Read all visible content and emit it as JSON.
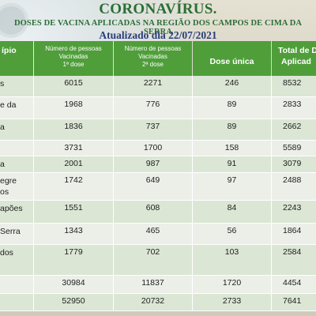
{
  "header": {
    "title": "CORONAVÍRUS.",
    "subtitle": "DOSES DE VACINA APLICADAS NA REGIÃO DOS CAMPOS DE CIMA DA SERRA",
    "date": "Atualizado dia 22/07/2021"
  },
  "columns": {
    "municipio": "ípio",
    "dose1_line1": "Número de pessoas",
    "dose1_line2": "Vacinadas",
    "dose1_line3": "1ª dose",
    "dose2_line1": "Número de pessoas",
    "dose2_line2": "Vacinadas",
    "dose2_line3": "2ª dose",
    "unica": "Dose única",
    "total_line1": "Total de D",
    "total_line2": "Aplicad"
  },
  "rows": [
    {
      "name1": "s",
      "name2": "",
      "d1": "6015",
      "d2": "2271",
      "du": "246",
      "total": "8532"
    },
    {
      "name1": "e da",
      "name2": "",
      "d1": "1968",
      "d2": "776",
      "du": "89",
      "total": "2833"
    },
    {
      "name1": "a",
      "name2": "",
      "d1": "1836",
      "d2": "737",
      "du": "89",
      "total": "2662"
    },
    {
      "name1": "",
      "name2": "",
      "d1": "3731",
      "d2": "1700",
      "du": "158",
      "total": "5589"
    },
    {
      "name1": "a",
      "name2": "",
      "d1": "2001",
      "d2": "987",
      "du": "91",
      "total": "3079"
    },
    {
      "name1": "egre",
      "name2": "os",
      "d1": "1742",
      "d2": "649",
      "du": "97",
      "total": "2488"
    },
    {
      "name1": "apões",
      "name2": "",
      "d1": "1551",
      "d2": "608",
      "du": "84",
      "total": "2243"
    },
    {
      "name1": "Serra",
      "name2": "",
      "d1": "1343",
      "d2": "465",
      "du": "56",
      "total": "1864"
    },
    {
      "name1": "dos",
      "name2": "",
      "d1": "1779",
      "d2": "702",
      "du": "103",
      "total": "2584"
    },
    {
      "name1": "",
      "name2": "",
      "d1": "30984",
      "d2": "11837",
      "du": "1720",
      "total": "4454"
    },
    {
      "name1": "",
      "name2": "",
      "d1": "52950",
      "d2": "20732",
      "du": "2733",
      "total": "7641"
    }
  ]
}
